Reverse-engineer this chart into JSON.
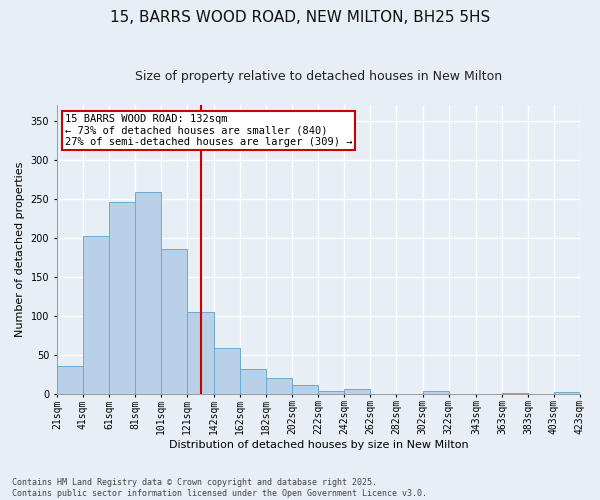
{
  "title_line1": "15, BARRS WOOD ROAD, NEW MILTON, BH25 5HS",
  "title_line2": "Size of property relative to detached houses in New Milton",
  "xlabel": "Distribution of detached houses by size in New Milton",
  "ylabel": "Number of detached properties",
  "bar_color": "#b8d0e8",
  "bar_edge_color": "#6aaad4",
  "background_color": "#e8eef5",
  "grid_color": "#ffffff",
  "vline_x": 132,
  "vline_color": "#cc0000",
  "annotation_text": "15 BARRS WOOD ROAD: 132sqm\n← 73% of detached houses are smaller (840)\n27% of semi-detached houses are larger (309) →",
  "annotation_box_color": "#ffffff",
  "annotation_border_color": "#cc0000",
  "bin_edges": [
    21,
    41,
    61,
    81,
    101,
    121,
    142,
    162,
    182,
    202,
    222,
    242,
    262,
    282,
    302,
    322,
    343,
    363,
    383,
    403,
    423
  ],
  "counts": [
    35,
    202,
    246,
    258,
    185,
    105,
    59,
    31,
    20,
    11,
    4,
    6,
    0,
    0,
    3,
    0,
    0,
    1,
    0,
    2
  ],
  "ylim": [
    0,
    370
  ],
  "yticks": [
    0,
    50,
    100,
    150,
    200,
    250,
    300,
    350
  ],
  "footer_text": "Contains HM Land Registry data © Crown copyright and database right 2025.\nContains public sector information licensed under the Open Government Licence v3.0.",
  "title_fontsize": 11,
  "subtitle_fontsize": 9,
  "axis_label_fontsize": 8,
  "tick_fontsize": 7,
  "annotation_fontsize": 7.5,
  "footer_fontsize": 6.0
}
